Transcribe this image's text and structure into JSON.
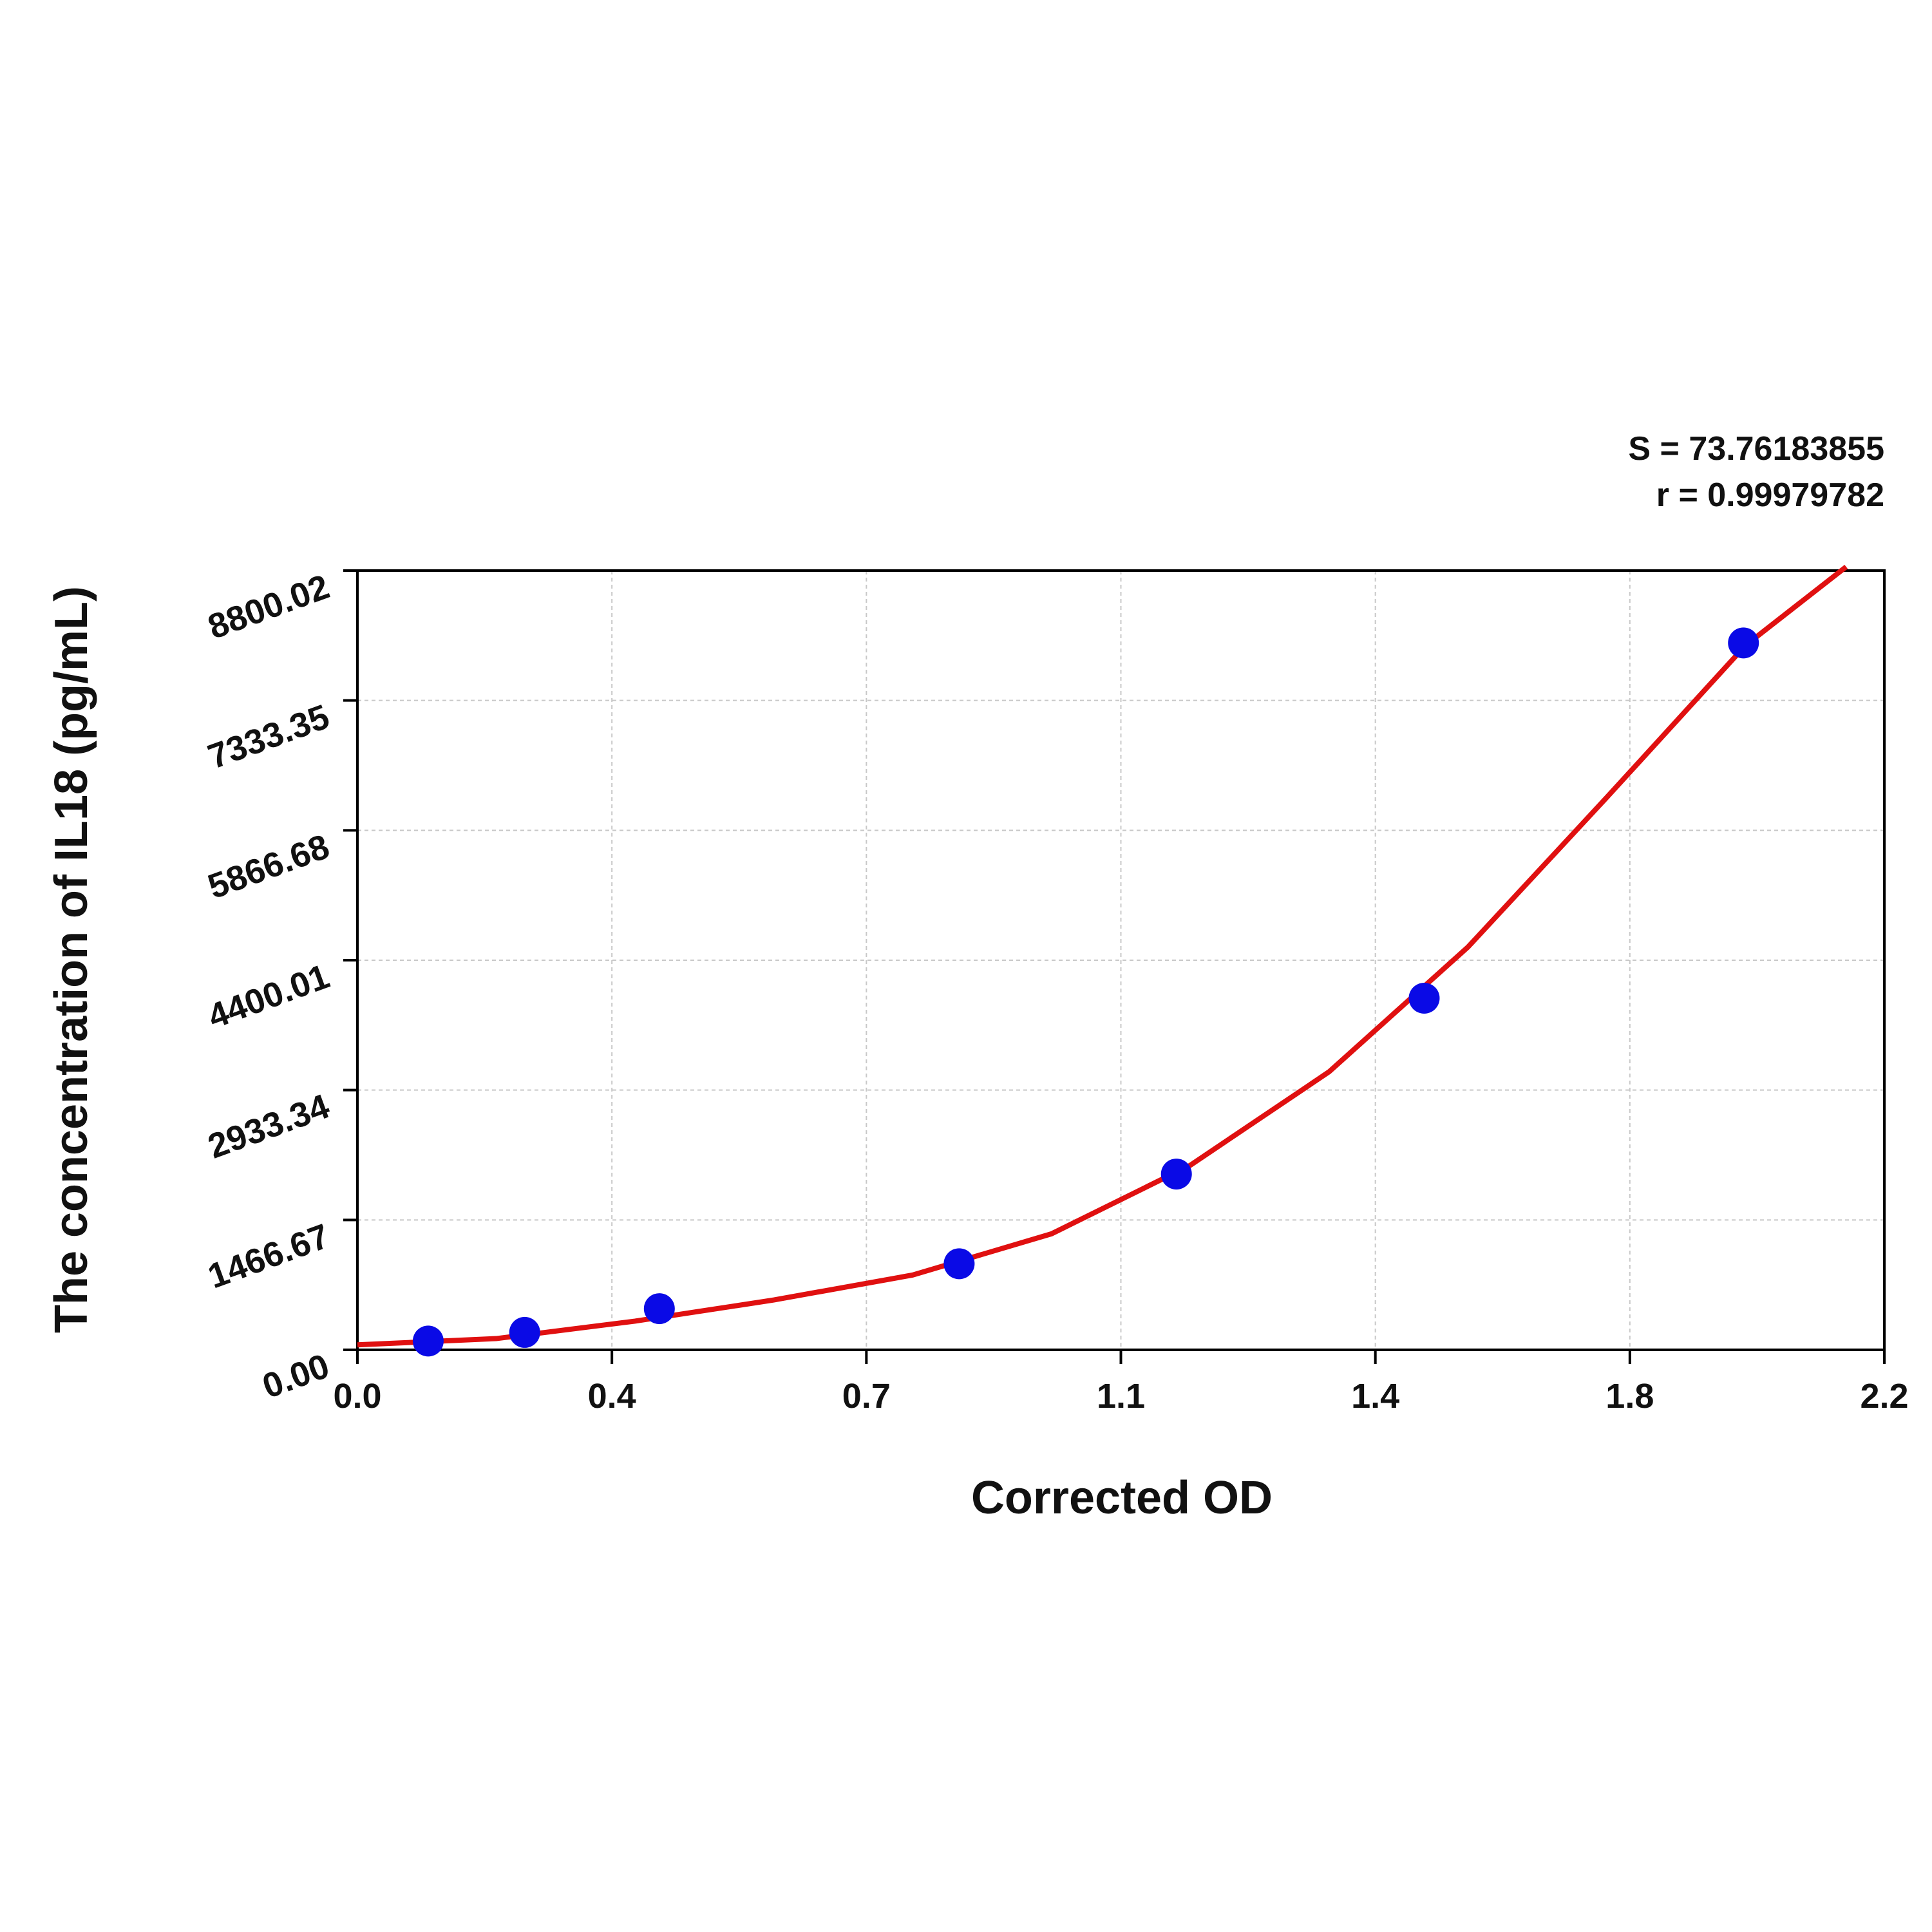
{
  "chart_data": {
    "type": "scatter",
    "x_label": "Corrected OD",
    "y_label": "The concentration of IL18 (pg/mL)",
    "annotations": [
      "S = 73.76183855",
      "r = 0.99979782"
    ],
    "xlim": [
      0,
      2.2
    ],
    "ylim": [
      0,
      8800.02
    ],
    "xticks": [
      {
        "value": 0,
        "label": "0.0"
      },
      {
        "value": 0.36667,
        "label": "0.4"
      },
      {
        "value": 0.73333,
        "label": "0.7"
      },
      {
        "value": 1.1,
        "label": "1.1"
      },
      {
        "value": 1.46667,
        "label": "1.4"
      },
      {
        "value": 1.83333,
        "label": "1.8"
      },
      {
        "value": 2.2,
        "label": "2.2"
      }
    ],
    "yticks": [
      {
        "value": 0,
        "label": "0.00"
      },
      1466.67,
      2933.34,
      4400.01,
      5866.68,
      7333.35,
      8800.02
    ],
    "grid": true,
    "series": [
      {
        "mode": "markers",
        "color": "#0a0ae6",
        "x": [
          0.102,
          0.241,
          0.435,
          0.867,
          1.18,
          1.537,
          1.997
        ],
        "values": [
          99,
          197,
          465,
          972,
          1985,
          3971,
          7983
        ]
      },
      {
        "mode": "lines",
        "color": "#e01010",
        "x": [
          0,
          0.2,
          0.4,
          0.6,
          0.8,
          1.0,
          1.2,
          1.4,
          1.6,
          1.8,
          2.0,
          2.145
        ],
        "values": [
          56,
          127,
          324,
          563,
          845,
          1310,
          2084,
          3140,
          4548,
          6238,
          7955,
          8843
        ]
      }
    ]
  }
}
